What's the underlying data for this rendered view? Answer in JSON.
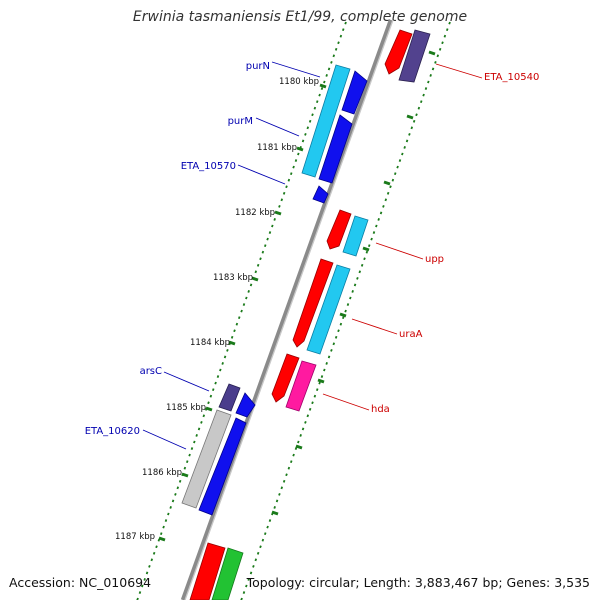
{
  "title": "Erwinia tasmaniensis Et1/99, complete genome",
  "footer": {
    "accession": "Accession: NC_010694",
    "stats": "Topology: circular; Length: 3,883,467 bp; Genes: 3,535"
  },
  "colors": {
    "backbone": "#808080",
    "tick": "#1a7a1a",
    "leftLabel": "#0000b0",
    "rightLabel": "#cc0000"
  },
  "kbp_ticks": [
    "1180 kbp",
    "1181 kbp",
    "1182 kbp",
    "1183 kbp",
    "1184 kbp",
    "1185 kbp",
    "1186 kbp",
    "1187 kbp"
  ],
  "gene_labels": [
    {
      "name": "purN",
      "side": "left"
    },
    {
      "name": "purM",
      "side": "left"
    },
    {
      "name": "ETA_10570",
      "side": "left"
    },
    {
      "name": "arsC",
      "side": "left"
    },
    {
      "name": "ETA_10620",
      "side": "left"
    },
    {
      "name": "ETA_10540",
      "side": "right"
    },
    {
      "name": "upp",
      "side": "right"
    },
    {
      "name": "uraA",
      "side": "right"
    },
    {
      "name": "hda",
      "side": "right"
    }
  ]
}
